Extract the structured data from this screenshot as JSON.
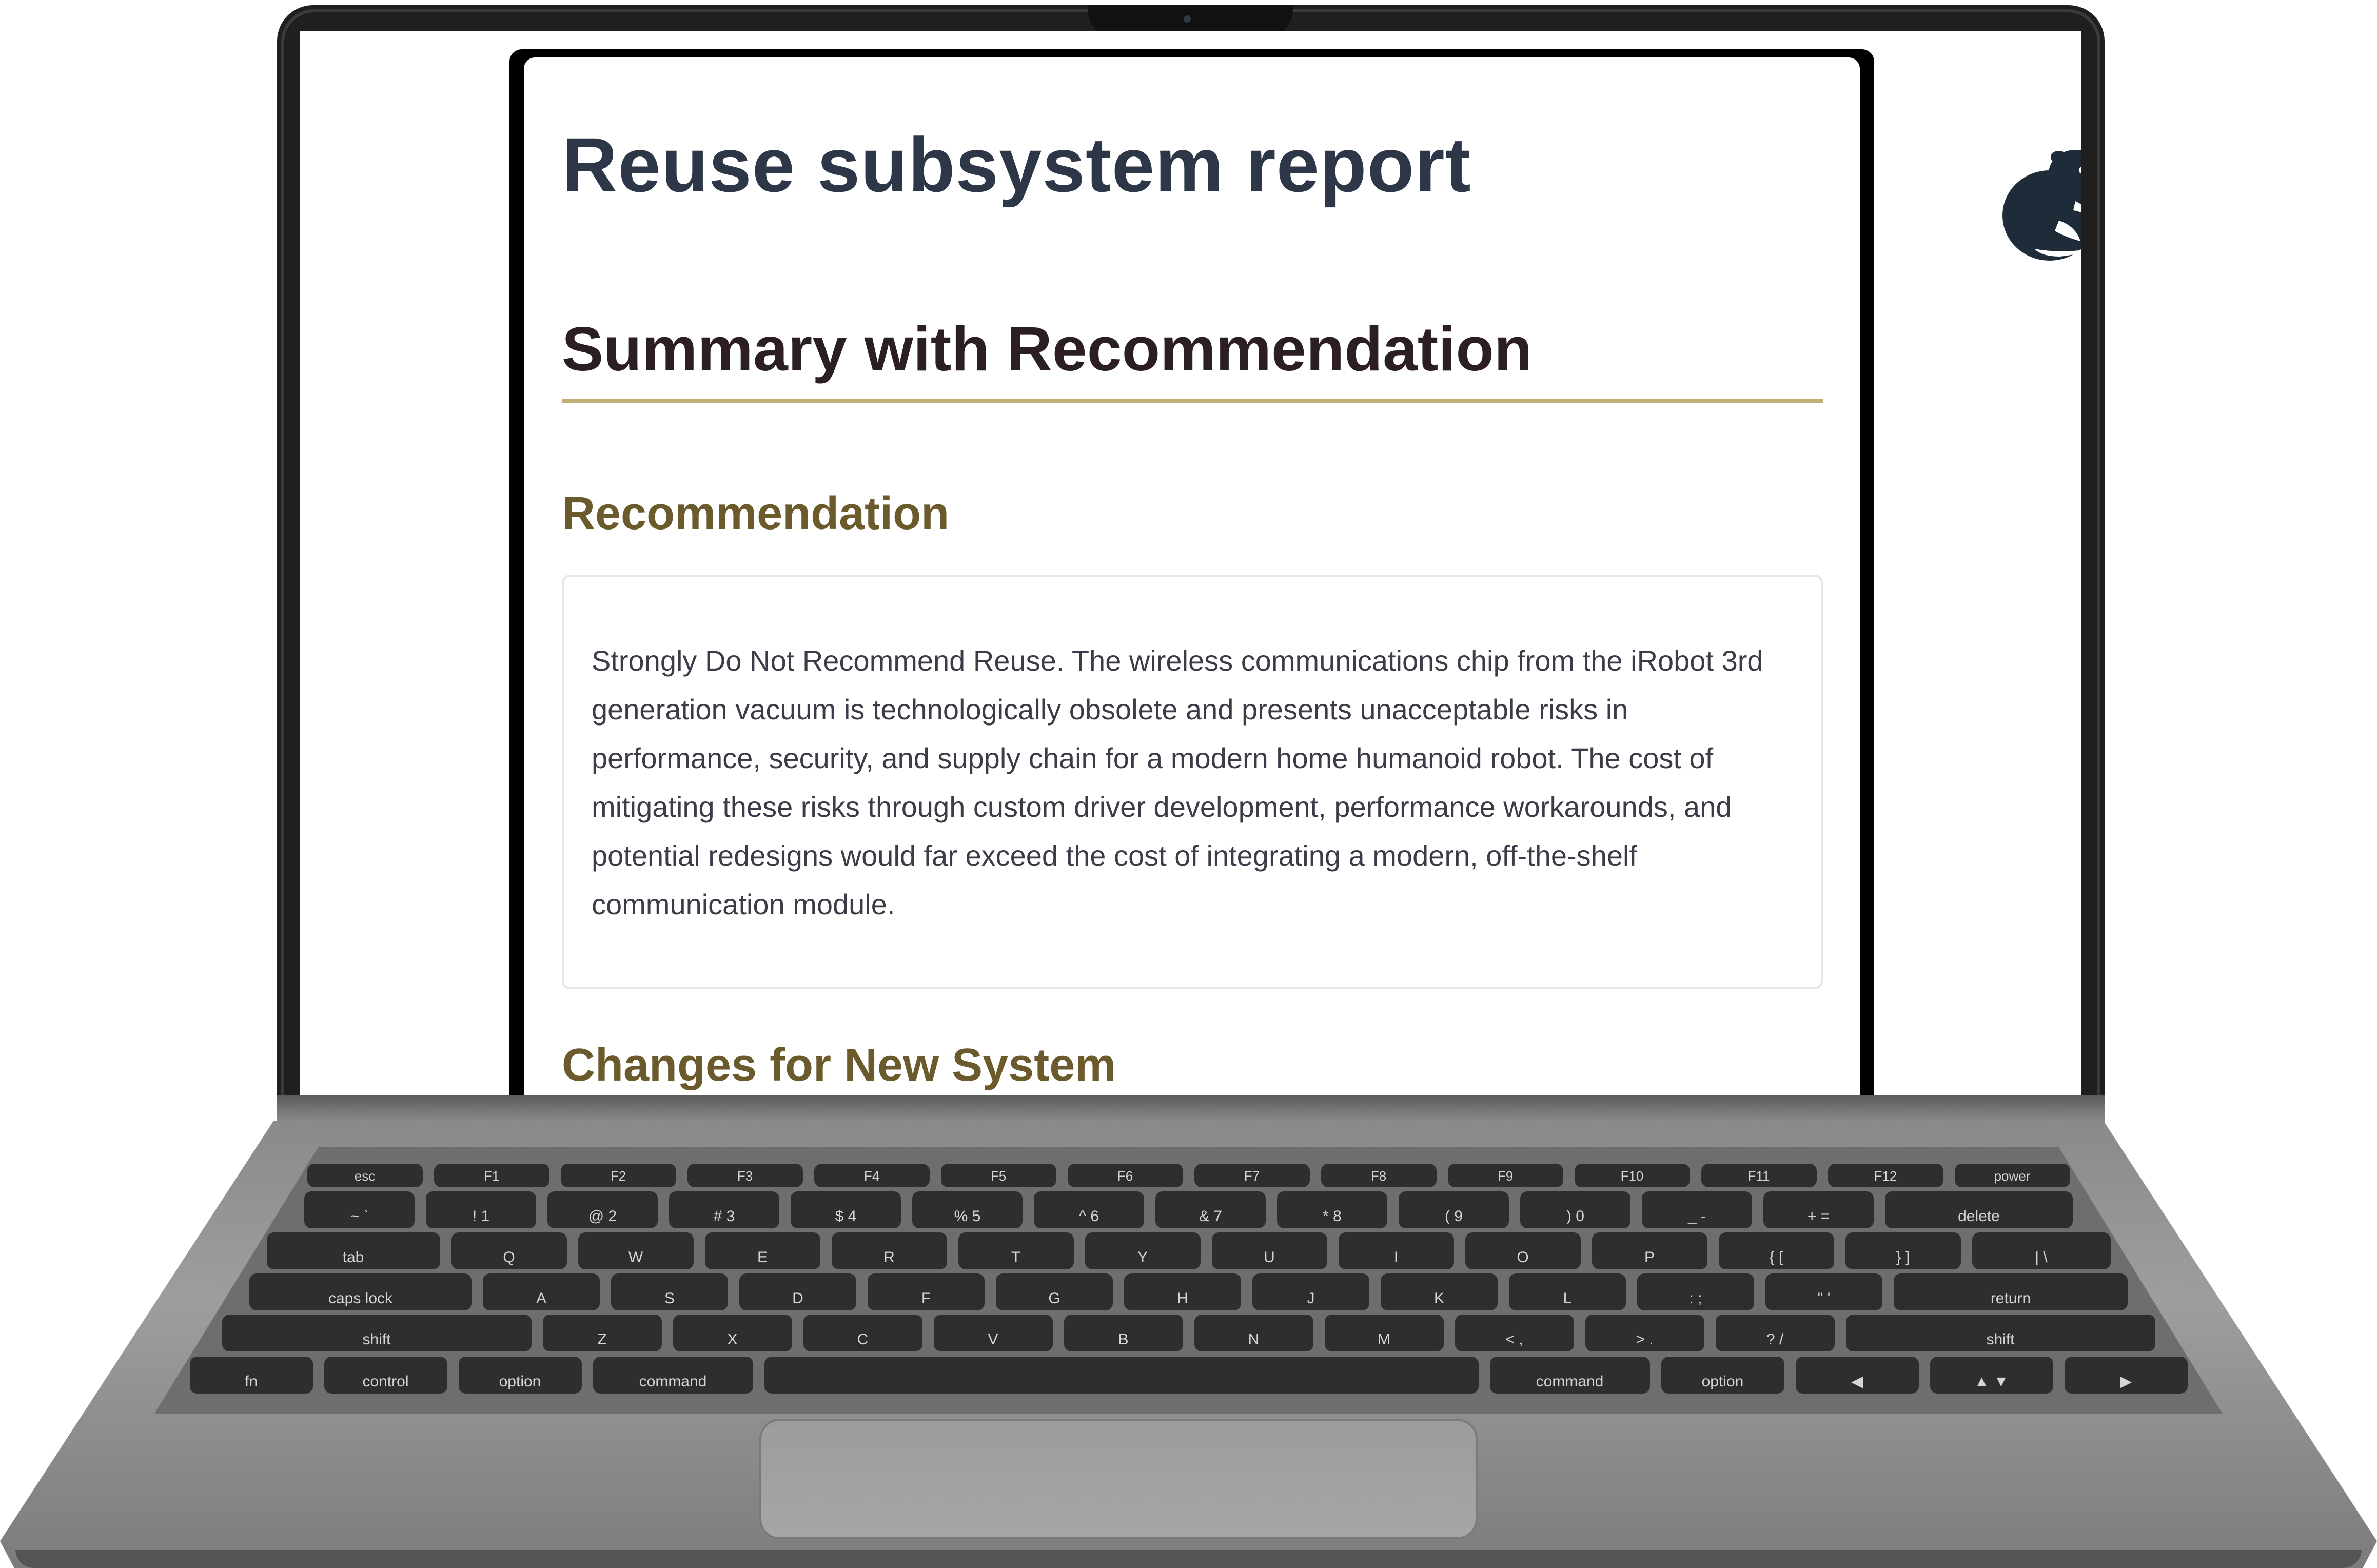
{
  "document": {
    "title": "Reuse subsystem report",
    "logo_icon": "beaver-logo-icon",
    "section_heading": "Summary with Recommendation",
    "recommendation_heading": "Recommendation",
    "recommendation_text": "Strongly Do Not Recommend Reuse. The wireless communications chip from the iRobot 3rd generation vacuum is technologically obsolete and presents unacceptable risks in performance, security, and supply chain for a modern home humanoid robot. The cost of mitigating these risks through custom driver development, performance workarounds, and potential redesigns would far exceed the cost of integrating a modern, off-the-shelf communication module.",
    "changes_heading": "Changes for New System"
  },
  "colors": {
    "title": "#2d3748",
    "section_heading": "#2b1f22",
    "subheading": "#6b5a2c",
    "rule": "#c2ae77",
    "logo": "#1e2b38"
  },
  "keyboard": {
    "rows": [
      [
        "esc",
        "F1",
        "F2",
        "F3",
        "F4",
        "F5",
        "F6",
        "F7",
        "F8",
        "F9",
        "F10",
        "F11",
        "F12",
        "power"
      ],
      [
        "~ `",
        "! 1",
        "@ 2",
        "# 3",
        "$ 4",
        "% 5",
        "^ 6",
        "& 7",
        "* 8",
        "( 9",
        ") 0",
        "_ -",
        "+ =",
        "delete"
      ],
      [
        "tab",
        "Q",
        "W",
        "E",
        "R",
        "T",
        "Y",
        "U",
        "I",
        "O",
        "P",
        "{ [",
        "} ]",
        "| \\"
      ],
      [
        "caps lock",
        "A",
        "S",
        "D",
        "F",
        "G",
        "H",
        "J",
        "K",
        "L",
        ": ;",
        "\" '",
        "return"
      ],
      [
        "shift",
        "Z",
        "X",
        "C",
        "V",
        "B",
        "N",
        "M",
        "< ,",
        "> .",
        "? /",
        "shift"
      ],
      [
        "fn",
        "control",
        "option",
        "command",
        "",
        "command",
        "option",
        "◀",
        "▲ ▼",
        "▶"
      ]
    ]
  }
}
